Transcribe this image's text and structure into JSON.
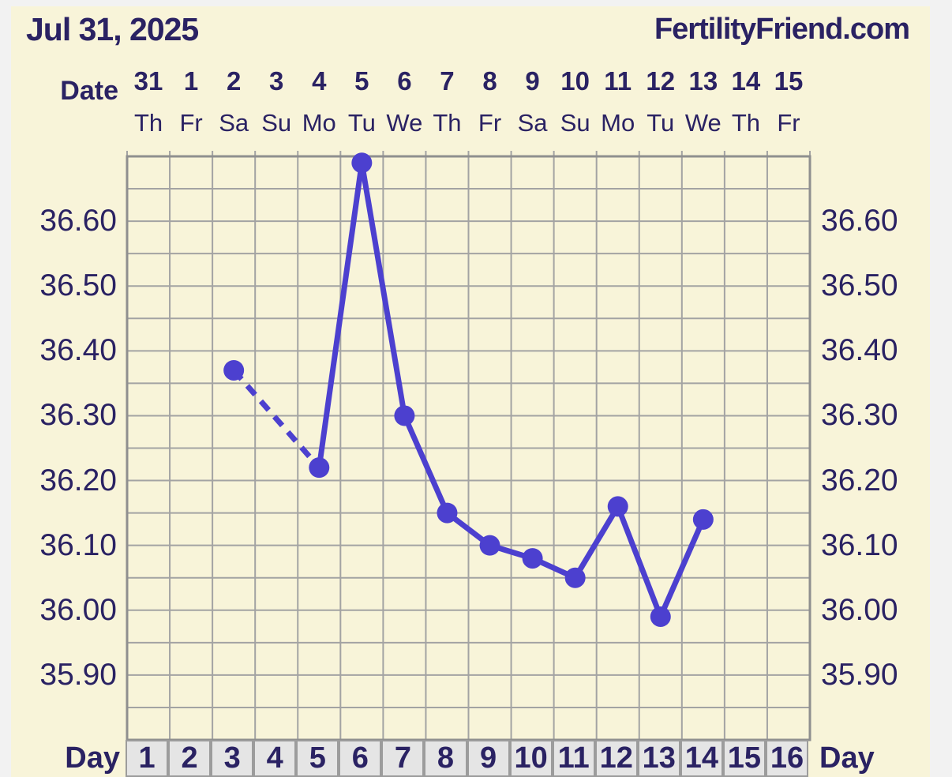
{
  "header": {
    "title": "Jul 31, 2025",
    "site": "FertilityFriend.com"
  },
  "labels": {
    "date": "Date",
    "day": "Day"
  },
  "date_row": [
    "31",
    "1",
    "2",
    "3",
    "4",
    "5",
    "6",
    "7",
    "8",
    "9",
    "10",
    "11",
    "12",
    "13",
    "14",
    "15"
  ],
  "weekday_row": [
    "Th",
    "Fr",
    "Sa",
    "Su",
    "Mo",
    "Tu",
    "We",
    "Th",
    "Fr",
    "Sa",
    "Su",
    "Mo",
    "Tu",
    "We",
    "Th",
    "Fr"
  ],
  "day_row": [
    "1",
    "2",
    "3",
    "4",
    "5",
    "6",
    "7",
    "8",
    "9",
    "10",
    "11",
    "12",
    "13",
    "14",
    "15",
    "16"
  ],
  "y_axis_labels": [
    "36.60",
    "36.50",
    "36.40",
    "36.30",
    "36.20",
    "36.10",
    "36.00",
    "35.90"
  ],
  "chart_data": {
    "type": "line",
    "title": "Jul 31, 2025",
    "series": [
      {
        "name": "basal-body-temperature",
        "days": [
          1,
          2,
          3,
          4,
          5,
          6,
          7,
          8,
          9,
          10,
          11,
          12,
          13,
          14,
          15,
          16
        ],
        "values": [
          null,
          null,
          36.37,
          null,
          36.22,
          36.69,
          36.3,
          36.15,
          36.1,
          36.08,
          36.05,
          36.16,
          35.99,
          36.14,
          null,
          null
        ]
      }
    ],
    "dashed_gap_segments": [
      [
        3,
        5
      ]
    ],
    "x_columns": 16,
    "ylim": [
      35.8,
      36.7
    ],
    "y_gridline_step": 0.05,
    "y_label_step": 0.1,
    "grid": true,
    "legend": "none",
    "xlabel": "Day",
    "ylabel": ""
  },
  "colors": {
    "accent_line": "#4c40cf",
    "text_navy": "#2a2263",
    "panel_cream": "#f8f4d9",
    "grid_gray": "#a3a3a3",
    "plot_border_gray": "#8f8f8f",
    "day_cell_gray": "#e5e5e5",
    "outer_background": "#f2f2f2"
  }
}
